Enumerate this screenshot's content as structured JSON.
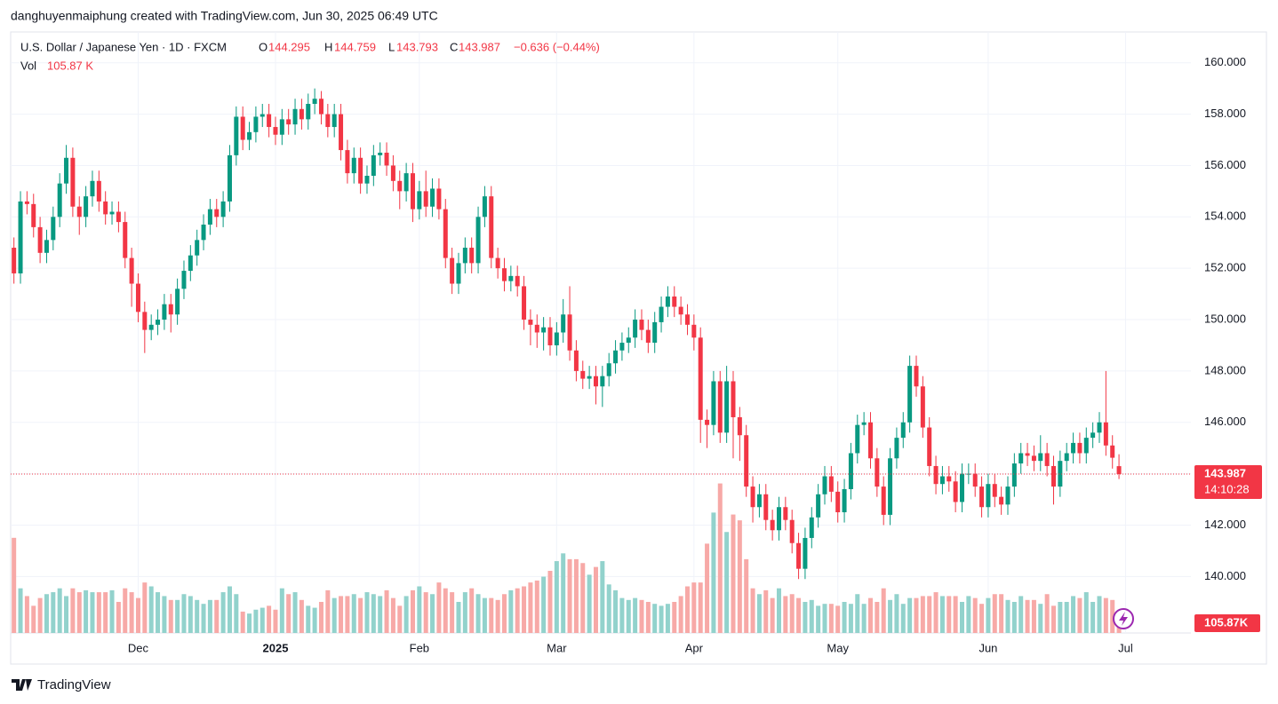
{
  "chart_data": {
    "type": "candlestick",
    "attribution": "danghuyenmaiphung created with TradingView.com, Jun 30, 2025 06:49 UTC",
    "title": "U.S. Dollar / Japanese Yen · 1D · FXCM",
    "ohlc_letters": [
      "O",
      "H",
      "L",
      "C"
    ],
    "change_label": "−0.636 (−0.44%)",
    "vol_title": "Vol",
    "vol_label": "105.87 K",
    "vol_badge": "105.87K",
    "countdown": "14:10:28",
    "brand": "TradingView",
    "up_color": "#089981",
    "down_color": "#f23645",
    "up_volume_color": "#92d2cc",
    "down_volume_color": "#f7a9a7",
    "open": [
      152.8,
      151.8,
      154.6,
      154.5,
      153.6,
      152.6,
      153.1,
      154.0,
      155.3,
      156.3,
      154.4,
      154.0,
      154.8,
      155.4,
      154.6,
      154.1,
      154.2,
      153.8,
      152.4,
      151.4,
      150.3,
      149.6,
      149.8,
      150.0,
      150.6,
      150.2,
      151.2,
      151.9,
      152.5,
      153.1,
      153.7,
      154.3,
      154.0,
      154.6,
      156.4,
      157.9,
      157.0,
      157.3,
      157.9,
      158.0,
      157.5,
      157.2,
      157.8,
      157.6,
      158.2,
      157.8,
      158.4,
      158.6,
      158.0,
      157.5,
      158.0,
      156.6,
      155.7,
      156.3,
      155.3,
      155.6,
      156.4,
      156.5,
      156.0,
      155.4,
      155.0,
      155.7,
      154.3,
      155.0,
      154.4,
      155.1,
      154.3,
      152.4,
      151.4,
      152.2,
      152.8,
      152.2,
      154.0,
      154.8,
      152.4,
      152.0,
      151.5,
      151.7,
      151.3,
      150.0,
      149.8,
      149.5,
      149.7,
      149.0,
      149.5,
      150.2,
      148.8,
      148.0,
      147.7,
      147.8,
      147.4,
      147.8,
      148.3,
      148.8,
      149.1,
      149.3,
      150.0,
      149.6,
      149.1,
      149.9,
      150.5,
      150.9,
      150.5,
      150.2,
      149.8,
      149.3,
      146.1,
      145.9,
      147.6,
      145.6,
      147.6,
      146.2,
      145.5,
      143.5,
      142.7,
      143.2,
      142.2,
      141.8,
      142.7,
      142.2,
      141.3,
      140.3,
      141.5,
      142.3,
      143.2,
      143.9,
      143.3,
      142.5,
      143.4,
      144.8,
      145.9,
      146.0,
      144.6,
      143.5,
      142.4,
      144.6,
      145.4,
      146.0,
      148.2,
      147.4,
      145.8,
      144.3,
      143.6,
      143.9,
      143.7,
      142.9,
      144.0,
      144.0,
      143.5,
      142.7,
      143.6,
      143.1,
      142.8,
      143.5,
      144.4,
      144.8,
      144.7,
      144.5,
      144.8,
      144.3,
      143.5,
      144.5,
      144.8,
      145.2,
      144.8,
      145.4,
      145.6,
      146.0,
      145.1,
      144.295
    ],
    "high": [
      153.2,
      155.0,
      155.0,
      154.9,
      154.0,
      153.5,
      154.4,
      155.7,
      156.8,
      156.7,
      154.8,
      155.2,
      155.8,
      155.8,
      155.0,
      154.6,
      154.6,
      154.2,
      152.8,
      151.8,
      150.7,
      150.2,
      150.4,
      151.0,
      151.0,
      151.6,
      152.3,
      152.9,
      153.5,
      154.1,
      154.7,
      154.7,
      155.0,
      156.8,
      158.3,
      158.3,
      157.7,
      158.3,
      158.4,
      158.4,
      157.9,
      158.2,
      158.2,
      158.6,
      158.6,
      158.8,
      159.0,
      158.9,
      158.4,
      158.4,
      158.4,
      157.0,
      156.7,
      156.7,
      156.0,
      156.8,
      156.9,
      156.9,
      156.4,
      155.8,
      156.1,
      156.1,
      155.4,
      155.8,
      155.5,
      155.5,
      154.7,
      152.8,
      152.6,
      153.2,
      153.2,
      154.4,
      155.2,
      155.2,
      152.8,
      152.4,
      152.1,
      152.1,
      151.7,
      150.4,
      150.2,
      150.1,
      150.1,
      149.9,
      150.8,
      151.3,
      149.2,
      148.4,
      148.2,
      148.2,
      148.2,
      148.7,
      149.2,
      149.5,
      149.7,
      150.4,
      150.4,
      150.0,
      150.3,
      150.9,
      151.3,
      151.3,
      150.9,
      150.6,
      150.2,
      149.7,
      146.5,
      148.0,
      148.0,
      148.2,
      148.0,
      146.6,
      145.9,
      143.9,
      143.6,
      143.6,
      142.6,
      143.1,
      143.1,
      142.6,
      141.7,
      141.9,
      142.7,
      143.6,
      144.3,
      144.3,
      143.7,
      143.8,
      145.2,
      146.3,
      146.4,
      146.4,
      145.0,
      143.9,
      145.0,
      145.8,
      146.4,
      148.6,
      148.6,
      147.8,
      146.2,
      144.7,
      144.3,
      144.3,
      144.1,
      144.4,
      144.4,
      144.4,
      143.9,
      144.0,
      144.0,
      143.5,
      143.9,
      144.8,
      145.2,
      145.2,
      145.1,
      145.5,
      145.2,
      144.7,
      144.9,
      145.2,
      145.6,
      145.6,
      145.8,
      146.0,
      146.4,
      148.0,
      145.5,
      144.759
    ],
    "low": [
      151.4,
      151.4,
      154.1,
      153.2,
      152.2,
      152.2,
      152.7,
      153.6,
      154.9,
      154.0,
      153.3,
      153.6,
      154.4,
      154.2,
      153.7,
      153.7,
      153.4,
      152.0,
      150.5,
      149.9,
      148.7,
      149.2,
      149.4,
      149.6,
      149.5,
      149.8,
      150.8,
      151.5,
      152.1,
      152.7,
      153.3,
      153.6,
      153.6,
      154.2,
      156.0,
      156.6,
      156.6,
      156.9,
      157.5,
      157.1,
      156.8,
      156.8,
      157.2,
      157.2,
      157.4,
      157.4,
      158.0,
      157.6,
      157.1,
      157.1,
      156.2,
      155.3,
      155.3,
      154.9,
      154.9,
      155.2,
      156.0,
      155.6,
      155.0,
      154.3,
      154.6,
      153.8,
      153.9,
      154.0,
      154.0,
      153.9,
      152.0,
      151.0,
      151.0,
      151.8,
      151.8,
      151.8,
      153.6,
      152.0,
      151.6,
      151.1,
      151.1,
      150.9,
      149.6,
      149.0,
      148.9,
      148.8,
      148.6,
      148.6,
      149.1,
      148.4,
      147.6,
      147.3,
      147.3,
      146.7,
      146.6,
      147.4,
      147.9,
      148.4,
      148.7,
      148.9,
      149.2,
      148.7,
      148.7,
      149.5,
      150.1,
      150.1,
      149.8,
      149.4,
      148.8,
      145.2,
      145.0,
      145.5,
      145.2,
      145.2,
      144.6,
      144.5,
      143.1,
      142.1,
      142.3,
      141.8,
      141.4,
      141.4,
      141.8,
      140.9,
      139.9,
      139.9,
      141.1,
      141.9,
      142.8,
      142.9,
      142.1,
      142.1,
      143.0,
      144.4,
      145.5,
      144.2,
      143.1,
      142.0,
      142.0,
      144.2,
      145.0,
      145.6,
      147.0,
      145.4,
      143.9,
      143.2,
      143.2,
      143.3,
      142.5,
      142.5,
      143.6,
      143.1,
      142.3,
      142.3,
      142.7,
      142.4,
      142.4,
      143.1,
      144.0,
      144.3,
      144.1,
      144.1,
      143.9,
      142.8,
      143.1,
      144.1,
      144.4,
      144.4,
      144.4,
      145.0,
      145.2,
      144.7,
      144.2,
      143.793
    ],
    "close": [
      151.8,
      154.6,
      154.5,
      153.6,
      152.6,
      153.1,
      154.0,
      155.3,
      156.3,
      154.4,
      154.0,
      154.8,
      155.4,
      154.6,
      154.1,
      154.2,
      153.8,
      152.4,
      151.4,
      150.3,
      149.6,
      149.8,
      150.0,
      150.6,
      150.2,
      151.2,
      151.9,
      152.5,
      153.1,
      153.7,
      154.3,
      154.0,
      154.6,
      156.4,
      157.9,
      157.0,
      157.3,
      157.9,
      158.0,
      157.5,
      157.2,
      157.8,
      157.6,
      158.2,
      157.8,
      158.4,
      158.6,
      158.0,
      157.5,
      158.0,
      156.6,
      155.7,
      156.3,
      155.3,
      155.6,
      156.4,
      156.5,
      156.0,
      155.4,
      155.0,
      155.7,
      154.3,
      155.0,
      154.4,
      155.1,
      154.3,
      152.4,
      151.4,
      152.2,
      152.8,
      152.2,
      154.0,
      154.8,
      152.4,
      152.0,
      151.5,
      151.7,
      151.3,
      150.0,
      149.8,
      149.5,
      149.7,
      149.0,
      149.5,
      150.2,
      148.8,
      148.0,
      147.7,
      147.8,
      147.4,
      147.8,
      148.3,
      148.8,
      149.1,
      149.3,
      150.0,
      149.6,
      149.1,
      149.9,
      150.5,
      150.9,
      150.5,
      150.2,
      149.8,
      149.3,
      146.1,
      145.9,
      147.6,
      145.6,
      147.6,
      146.2,
      145.5,
      143.5,
      142.7,
      143.2,
      142.2,
      141.8,
      142.7,
      142.2,
      141.3,
      140.3,
      141.5,
      142.3,
      143.2,
      143.9,
      143.3,
      142.5,
      143.4,
      144.8,
      145.9,
      146.0,
      144.6,
      143.5,
      142.4,
      144.6,
      145.4,
      146.0,
      148.2,
      147.4,
      145.8,
      144.3,
      143.6,
      143.9,
      143.7,
      142.9,
      144.0,
      144.0,
      143.5,
      142.7,
      143.6,
      143.1,
      142.8,
      143.5,
      144.4,
      144.8,
      144.7,
      144.5,
      144.8,
      144.3,
      143.5,
      144.5,
      144.8,
      145.2,
      144.8,
      145.4,
      145.6,
      146.0,
      145.1,
      144.623,
      143.987
    ],
    "volume": [
      490,
      230,
      190,
      140,
      180,
      200,
      210,
      230,
      190,
      230,
      210,
      220,
      210,
      210,
      210,
      220,
      160,
      230,
      210,
      180,
      260,
      240,
      210,
      190,
      170,
      170,
      200,
      190,
      170,
      150,
      170,
      170,
      210,
      240,
      200,
      110,
      100,
      120,
      130,
      140,
      120,
      230,
      200,
      210,
      170,
      140,
      130,
      160,
      220,
      180,
      190,
      190,
      200,
      180,
      210,
      200,
      190,
      220,
      180,
      140,
      190,
      220,
      240,
      210,
      200,
      260,
      230,
      210,
      160,
      210,
      230,
      200,
      180,
      180,
      170,
      200,
      220,
      230,
      240,
      260,
      270,
      290,
      320,
      370,
      410,
      380,
      380,
      360,
      300,
      340,
      370,
      250,
      220,
      180,
      170,
      180,
      170,
      160,
      150,
      140,
      150,
      160,
      190,
      240,
      260,
      260,
      460,
      620,
      770,
      520,
      610,
      580,
      380,
      230,
      200,
      220,
      180,
      230,
      190,
      200,
      180,
      160,
      170,
      140,
      150,
      150,
      140,
      160,
      150,
      200,
      150,
      180,
      160,
      230,
      170,
      200,
      150,
      180,
      180,
      190,
      190,
      210,
      190,
      190,
      190,
      160,
      190,
      180,
      150,
      180,
      200,
      200,
      170,
      160,
      190,
      170,
      170,
      150,
      200,
      140,
      160,
      160,
      190,
      180,
      210,
      160,
      190,
      180,
      170,
      105.87
    ],
    "vol_lim": [
      0,
      800
    ],
    "ylim": [
      137.8,
      161.2
    ],
    "yticks": [
      {
        "value": 140,
        "label": "140.000"
      },
      {
        "value": 142,
        "label": "142.000"
      },
      {
        "value": 144,
        "label": "144.000"
      },
      {
        "value": 146,
        "label": "146.000"
      },
      {
        "value": 148,
        "label": "148.000"
      },
      {
        "value": 150,
        "label": "150.000"
      },
      {
        "value": 152,
        "label": "152.000"
      },
      {
        "value": 154,
        "label": "154.000"
      },
      {
        "value": 156,
        "label": "156.000"
      },
      {
        "value": 158,
        "label": "158.000"
      },
      {
        "value": 160,
        "label": "160.000"
      }
    ],
    "xlim": [
      -0.5,
      180
    ],
    "xticks": [
      {
        "value": 19,
        "label": "Dec"
      },
      {
        "value": 40,
        "label": "2025"
      },
      {
        "value": 62,
        "label": "Feb"
      },
      {
        "value": 83,
        "label": "Mar"
      },
      {
        "value": 104,
        "label": "Apr"
      },
      {
        "value": 126,
        "label": "May"
      },
      {
        "value": 149,
        "label": "Jun"
      },
      {
        "value": 170,
        "label": "Jul"
      }
    ],
    "grid": true
  }
}
